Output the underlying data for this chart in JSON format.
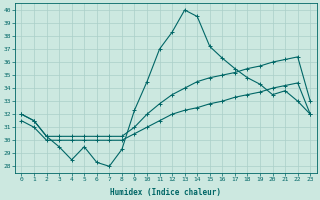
{
  "title": "",
  "xlabel": "Humidex (Indice chaleur)",
  "bg_color": "#cce8e0",
  "grid_color": "#aacfc8",
  "line_color": "#006666",
  "xlim": [
    -0.5,
    23.5
  ],
  "ylim": [
    27.5,
    40.5
  ],
  "yticks": [
    28,
    29,
    30,
    31,
    32,
    33,
    34,
    35,
    36,
    37,
    38,
    39,
    40
  ],
  "xticks": [
    0,
    1,
    2,
    3,
    4,
    5,
    6,
    7,
    8,
    9,
    10,
    11,
    12,
    13,
    14,
    15,
    16,
    17,
    18,
    19,
    20,
    21,
    22,
    23
  ],
  "series1_x": [
    0,
    1,
    2,
    3,
    4,
    5,
    6,
    7,
    8,
    9,
    10,
    11,
    12,
    13,
    14,
    15,
    16,
    17,
    18,
    19,
    20,
    21,
    22,
    23
  ],
  "series1_y": [
    32.0,
    31.5,
    30.3,
    29.5,
    28.5,
    29.5,
    28.3,
    28.0,
    29.3,
    32.3,
    34.5,
    37.0,
    38.3,
    40.0,
    39.5,
    37.2,
    36.3,
    35.5,
    34.8,
    34.3,
    33.5,
    33.8,
    33.0,
    32.0
  ],
  "series2_x": [
    0,
    1,
    2,
    3,
    4,
    5,
    6,
    7,
    8,
    9,
    10,
    11,
    12,
    13,
    14,
    15,
    16,
    17,
    18,
    19,
    20,
    21,
    22,
    23
  ],
  "series2_y": [
    32.0,
    31.5,
    30.3,
    30.3,
    30.3,
    30.3,
    30.3,
    30.3,
    30.3,
    31.0,
    32.0,
    32.8,
    33.5,
    34.0,
    34.5,
    34.8,
    35.0,
    35.2,
    35.5,
    35.7,
    36.0,
    36.2,
    36.4,
    33.0
  ],
  "series3_x": [
    0,
    1,
    2,
    3,
    4,
    5,
    6,
    7,
    8,
    9,
    10,
    11,
    12,
    13,
    14,
    15,
    16,
    17,
    18,
    19,
    20,
    21,
    22,
    23
  ],
  "series3_y": [
    31.5,
    31.0,
    30.0,
    30.0,
    30.0,
    30.0,
    30.0,
    30.0,
    30.0,
    30.5,
    31.0,
    31.5,
    32.0,
    32.3,
    32.5,
    32.8,
    33.0,
    33.3,
    33.5,
    33.7,
    34.0,
    34.2,
    34.4,
    32.0
  ],
  "tick_fontsize": 4.5,
  "xlabel_fontsize": 5.5
}
